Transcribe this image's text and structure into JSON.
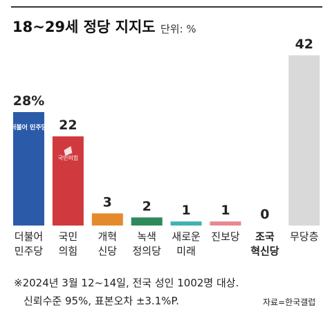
{
  "chart_data": {
    "type": "bar",
    "title": "18~29세 정당 지지도",
    "unit": "단위: %",
    "categories": [
      "더불어 민주당",
      "국민 의힘",
      "개혁 신당",
      "녹색 정의당",
      "새로운 미래",
      "진보당",
      "조국 혁신당",
      "무당층"
    ],
    "values": [
      28,
      22,
      3,
      2,
      1,
      1,
      0,
      42
    ],
    "value_labels": [
      "28%",
      "22",
      "3",
      "2",
      "1",
      "1",
      "0",
      "42"
    ],
    "colors": [
      "#2b5ba8",
      "#d0393d",
      "#e58a2c",
      "#2e8a5c",
      "#3fb2b4",
      "#e58a90",
      "#1f4e9a",
      "#d9d9d9"
    ],
    "logos": [
      "더불어 민주당",
      "국민의힘"
    ],
    "ylim": [
      0,
      42
    ],
    "notes": [
      "※2024년 3월 12~14일, 전국 성인 1002명 대상.",
      "신뢰수준 95%, 표본오차 ±3.1%P."
    ],
    "source": "자료=한국갤럽"
  }
}
